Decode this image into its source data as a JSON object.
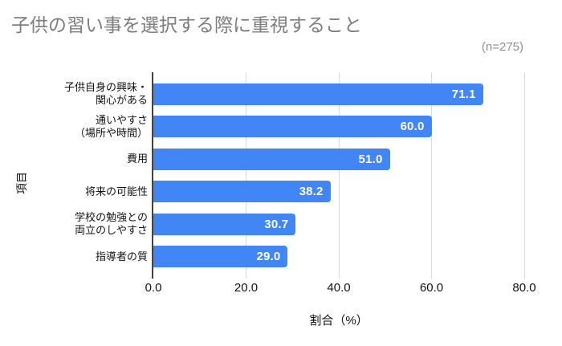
{
  "header": {
    "title": "子供の習い事を選択する際に重視すること",
    "sample_size_label": "(n=275)"
  },
  "chart_data": {
    "type": "bar",
    "orientation": "horizontal",
    "title": "子供の習い事を選択する際に重視すること",
    "annotation": "(n=275)",
    "categories": [
      "子供自身の興味・\n関心がある",
      "通いやすさ\n（場所や時間）",
      "費用",
      "将来の可能性",
      "学校の勉強との\n両立のしやすさ",
      "指導者の質"
    ],
    "values": [
      71.1,
      60.0,
      51.0,
      38.2,
      30.7,
      29.0
    ],
    "value_labels": [
      "71.1",
      "60.0",
      "51.0",
      "38.2",
      "30.7",
      "29.0"
    ],
    "xlabel": "割合（%）",
    "ylabel": "項目",
    "xlim": [
      0,
      80
    ],
    "xticks": {
      "values": [
        0,
        20,
        40,
        60,
        80
      ],
      "labels": [
        "0.0",
        "20.0",
        "40.0",
        "60.0",
        "80.0"
      ]
    },
    "grid": "vertical",
    "legend": "none",
    "colors": {
      "bar": "#4285F4",
      "title_text": "#7d7d7d",
      "annotation_text": "#8e8e8e",
      "axis_text": "#111111",
      "gridline": "#d9d9d9",
      "axis_line": "#424242",
      "value_label_text": "#ffffff"
    }
  }
}
